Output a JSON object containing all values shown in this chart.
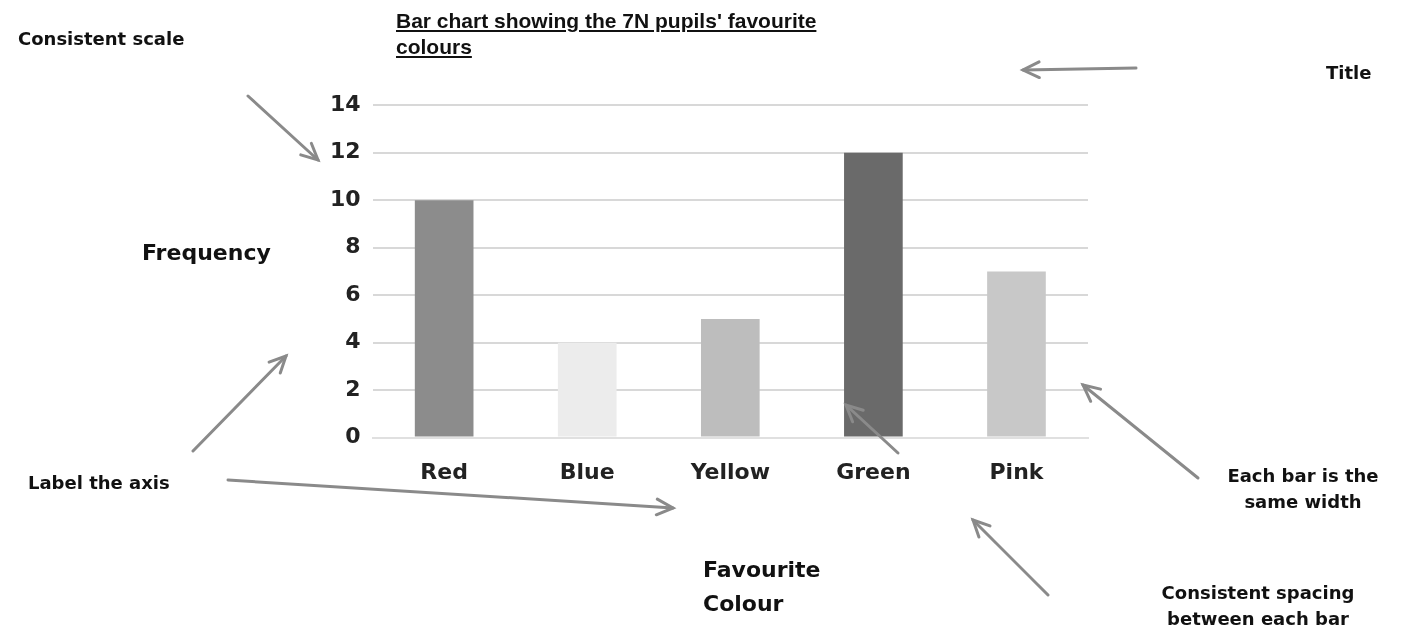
{
  "chart_data": {
    "type": "bar",
    "title": "Bar chart showing the 7N pupils' favourite colours",
    "xlabel": "Favourite Colour",
    "ylabel": "Frequency",
    "categories": [
      "Red",
      "Blue",
      "Yellow",
      "Green",
      "Pink"
    ],
    "values": [
      10,
      4,
      5,
      12,
      7
    ],
    "colors": [
      "#8c8c8c",
      "#ececec",
      "#bdbdbd",
      "#6a6a6a",
      "#c8c8c8"
    ],
    "ylim": [
      0,
      14
    ],
    "yticks": [
      0,
      2,
      4,
      6,
      8,
      10,
      12,
      14
    ],
    "grid": "y",
    "annotations": [
      "Consistent scale",
      "Title",
      "Label the axis",
      "Each bar is the same width",
      "Consistent spacing between each bar"
    ]
  }
}
